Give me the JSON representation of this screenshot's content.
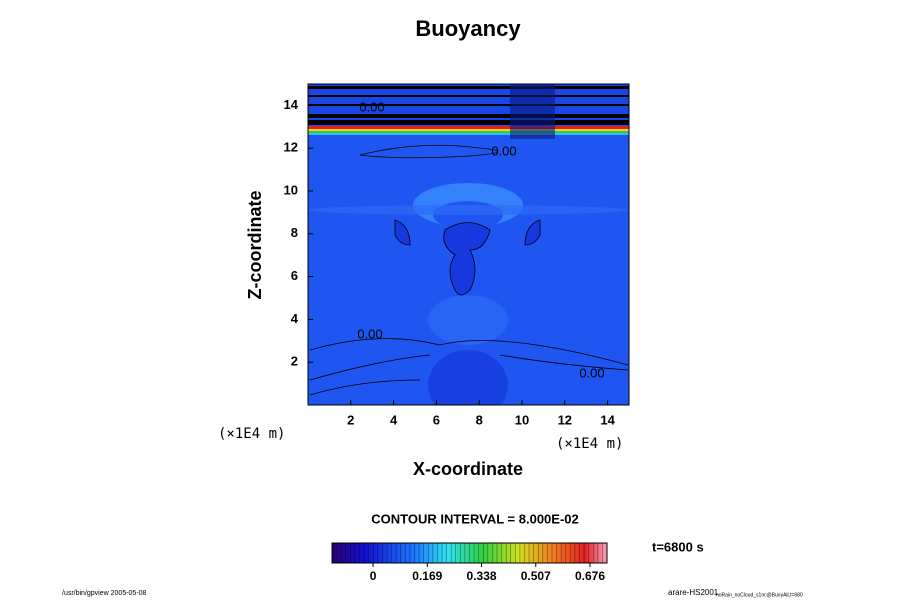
{
  "chart_data": {
    "type": "contour",
    "title": "Buoyancy",
    "x_label": "X-coordinate",
    "y_label": "Z-coordinate",
    "x_unit": "(×1E4 m)",
    "y_unit": "(×1E4 m)",
    "xlim": [
      0,
      15
    ],
    "ylim": [
      0,
      15
    ],
    "xticks": [
      2,
      4,
      6,
      8,
      10,
      12,
      14
    ],
    "yticks": [
      2,
      4,
      6,
      8,
      10,
      12,
      14
    ],
    "contour_labels": [
      "0.00",
      "0.00",
      "0.00",
      "0.00"
    ],
    "contour_interval": "CONTOUR INTERVAL = 8.000E-02",
    "time": "t=6800 s",
    "colorbar": {
      "clim": [
        -0.128,
        0.729
      ],
      "ticks": [
        0,
        0.169,
        0.338,
        0.507,
        0.676
      ]
    },
    "footer_left": "/usr/bin/gpview 2005-05-08",
    "footer_right": "arare-HS2001",
    "footer_right_sub": "noRain_noCloud_s1nc@BuoyAll,t=680"
  }
}
